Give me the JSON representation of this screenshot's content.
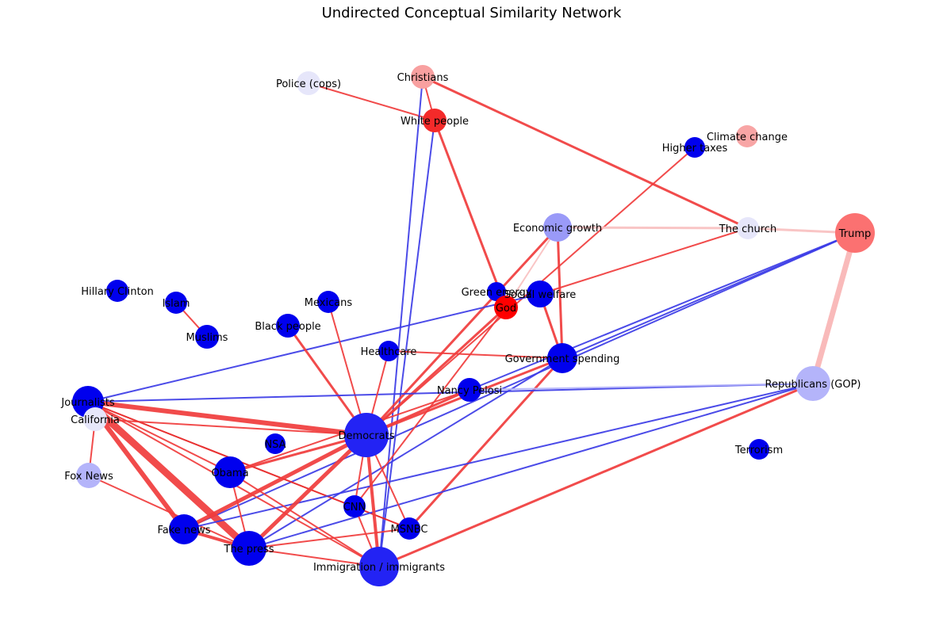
{
  "title": "Undirected Conceptual Similarity Network",
  "nodes": [
    {
      "id": "christians",
      "label": "Christians",
      "color": "#f8a0a0",
      "size": 15
    },
    {
      "id": "police",
      "label": "Police (cops)",
      "color": "#e6e6fa",
      "size": 15
    },
    {
      "id": "white_people",
      "label": "White people",
      "color": "#f42a2a",
      "size": 15
    },
    {
      "id": "climate_change",
      "label": "Climate change",
      "color": "#f8a5a5",
      "size": 14
    },
    {
      "id": "higher_taxes",
      "label": "Higher taxes",
      "color": "#0000ee",
      "size": 13
    },
    {
      "id": "economic_growth",
      "label": "Economic growth",
      "color": "#9a9af8",
      "size": 18
    },
    {
      "id": "the_church",
      "label": "The church",
      "color": "#e6e6fa",
      "size": 14
    },
    {
      "id": "trump",
      "label": "Trump",
      "color": "#fb7171",
      "size": 25
    },
    {
      "id": "green_energy",
      "label": "Green energy",
      "color": "#0000ee",
      "size": 12
    },
    {
      "id": "social_welfare",
      "label": "Social welfare",
      "color": "#0000ee",
      "size": 17
    },
    {
      "id": "god",
      "label": "God",
      "color": "#ff0000",
      "size": 15
    },
    {
      "id": "hillary_clinton",
      "label": "Hillary Clinton",
      "color": "#0000ee",
      "size": 14
    },
    {
      "id": "islam",
      "label": "Islam",
      "color": "#0000ee",
      "size": 14
    },
    {
      "id": "mexicans",
      "label": "Mexicans",
      "color": "#0000ee",
      "size": 14
    },
    {
      "id": "black_people",
      "label": "Black people",
      "color": "#0000ee",
      "size": 15
    },
    {
      "id": "muslims",
      "label": "Muslims",
      "color": "#0000ee",
      "size": 15
    },
    {
      "id": "healthcare",
      "label": "Healthcare",
      "color": "#0000ee",
      "size": 13
    },
    {
      "id": "government_spending",
      "label": "Government spending",
      "color": "#0000ee",
      "size": 19
    },
    {
      "id": "nancy_pelosi",
      "label": "Nancy Pelosi",
      "color": "#0000ee",
      "size": 15
    },
    {
      "id": "republicans",
      "label": "Republicans (GOP)",
      "color": "#b4b4fa",
      "size": 22
    },
    {
      "id": "journalists",
      "label": "Journalists",
      "color": "#0000ee",
      "size": 20
    },
    {
      "id": "california",
      "label": "California",
      "color": "#e6e6fa",
      "size": 15
    },
    {
      "id": "democrats",
      "label": "Democrats",
      "color": "#2323f4",
      "size": 28
    },
    {
      "id": "nsa",
      "label": "NSA",
      "color": "#0000ee",
      "size": 13
    },
    {
      "id": "terrorism",
      "label": "Terrorism",
      "color": "#0000ee",
      "size": 13
    },
    {
      "id": "fox_news",
      "label": "Fox News",
      "color": "#b4b4fa",
      "size": 16
    },
    {
      "id": "obama",
      "label": "Obama",
      "color": "#0000ee",
      "size": 20
    },
    {
      "id": "cnn",
      "label": "CNN",
      "color": "#0000ee",
      "size": 14
    },
    {
      "id": "msnbc",
      "label": "MSNBC",
      "color": "#0000ee",
      "size": 14
    },
    {
      "id": "fake_news",
      "label": "Fake news",
      "color": "#0000ee",
      "size": 19
    },
    {
      "id": "the_press",
      "label": "The press",
      "color": "#0000ee",
      "size": 22
    },
    {
      "id": "immigration",
      "label": "Immigration / immigrants",
      "color": "#2323f4",
      "size": 25
    }
  ],
  "edges": [
    {
      "a": "police",
      "b": "white_people",
      "color": "#f03c3c",
      "width": 2
    },
    {
      "a": "christians",
      "b": "white_people",
      "color": "#f03c3c",
      "width": 2
    },
    {
      "a": "christians",
      "b": "the_church",
      "color": "#f03c3c",
      "width": 3
    },
    {
      "a": "christians",
      "b": "immigration",
      "color": "#3c3ce6",
      "width": 2
    },
    {
      "a": "white_people",
      "b": "immigration",
      "color": "#3c3ce6",
      "width": 2
    },
    {
      "a": "white_people",
      "b": "god",
      "color": "#f03c3c",
      "width": 3
    },
    {
      "a": "higher_taxes",
      "b": "democrats",
      "color": "#f03c3c",
      "width": 2
    },
    {
      "a": "economic_growth",
      "b": "the_church",
      "color": "#f8c0c0",
      "width": 3
    },
    {
      "a": "the_church",
      "b": "trump",
      "color": "#f8c0c0",
      "width": 3
    },
    {
      "a": "economic_growth",
      "b": "god",
      "color": "#f8c0c0",
      "width": 2
    },
    {
      "a": "economic_growth",
      "b": "government_spending",
      "color": "#f03c3c",
      "width": 3
    },
    {
      "a": "economic_growth",
      "b": "democrats",
      "color": "#f03c3c",
      "width": 3
    },
    {
      "a": "the_church",
      "b": "social_welfare",
      "color": "#f03c3c",
      "width": 2
    },
    {
      "a": "trump",
      "b": "republicans",
      "color": "#f8b4b4",
      "width": 7
    },
    {
      "a": "trump",
      "b": "government_spending",
      "color": "#3c3ce6",
      "width": 2
    },
    {
      "a": "trump",
      "b": "nancy_pelosi",
      "color": "#3c3ce6",
      "width": 2
    },
    {
      "a": "trump",
      "b": "fake_news",
      "color": "#3c3ce6",
      "width": 2
    },
    {
      "a": "social_welfare",
      "b": "government_spending",
      "color": "#f03c3c",
      "width": 3
    },
    {
      "a": "social_welfare",
      "b": "journalists",
      "color": "#3c3ce6",
      "width": 2
    },
    {
      "a": "islam",
      "b": "muslims",
      "color": "#f03c3c",
      "width": 2
    },
    {
      "a": "mexicans",
      "b": "democrats",
      "color": "#f03c3c",
      "width": 2
    },
    {
      "a": "black_people",
      "b": "democrats",
      "color": "#f03c3c",
      "width": 3
    },
    {
      "a": "healthcare",
      "b": "government_spending",
      "color": "#f03c3c",
      "width": 2
    },
    {
      "a": "government_spending",
      "b": "democrats",
      "color": "#f03c3c",
      "width": 3
    },
    {
      "a": "government_spending",
      "b": "msnbc",
      "color": "#f03c3c",
      "width": 3
    },
    {
      "a": "government_spending",
      "b": "the_press",
      "color": "#3c3ce6",
      "width": 2
    },
    {
      "a": "god",
      "b": "democrats",
      "color": "#f03c3c",
      "width": 3
    },
    {
      "a": "god",
      "b": "cnn",
      "color": "#f03c3c",
      "width": 2
    },
    {
      "a": "journalists",
      "b": "republicans",
      "color": "#3c3ce6",
      "width": 2
    },
    {
      "a": "journalists",
      "b": "democrats",
      "color": "#f03c3c",
      "width": 6
    },
    {
      "a": "journalists",
      "b": "the_press",
      "color": "#f03c3c",
      "width": 9
    },
    {
      "a": "journalists",
      "b": "fake_news",
      "color": "#f03c3c",
      "width": 6
    },
    {
      "a": "journalists",
      "b": "obama",
      "color": "#f03c3c",
      "width": 2
    },
    {
      "a": "journalists",
      "b": "msnbc",
      "color": "#e61e1e",
      "width": 2
    },
    {
      "a": "journalists",
      "b": "immigration",
      "color": "#f03c3c",
      "width": 2
    },
    {
      "a": "california",
      "b": "fox_news",
      "color": "#f03c3c",
      "width": 2
    },
    {
      "a": "california",
      "b": "democrats",
      "color": "#f03c3c",
      "width": 2
    },
    {
      "a": "fox_news",
      "b": "the_press",
      "color": "#f03c3c",
      "width": 2
    },
    {
      "a": "nancy_pelosi",
      "b": "democrats",
      "color": "#f03c3c",
      "width": 3
    },
    {
      "a": "nancy_pelosi",
      "b": "obama",
      "color": "#f03c3c",
      "width": 2
    },
    {
      "a": "republicans",
      "b": "nancy_pelosi",
      "color": "#b4b4fa",
      "width": 2
    },
    {
      "a": "republicans",
      "b": "the_press",
      "color": "#3c3ce6",
      "width": 2
    },
    {
      "a": "republicans",
      "b": "immigration",
      "color": "#f03c3c",
      "width": 3
    },
    {
      "a": "republicans",
      "b": "fake_news",
      "color": "#3c3ce6",
      "width": 2
    },
    {
      "a": "democrats",
      "b": "obama",
      "color": "#f03c3c",
      "width": 3
    },
    {
      "a": "democrats",
      "b": "fake_news",
      "color": "#f03c3c",
      "width": 5
    },
    {
      "a": "democrats",
      "b": "the_press",
      "color": "#f03c3c",
      "width": 5
    },
    {
      "a": "democrats",
      "b": "immigration",
      "color": "#f03c3c",
      "width": 4
    },
    {
      "a": "democrats",
      "b": "msnbc",
      "color": "#f03c3c",
      "width": 2
    },
    {
      "a": "democrats",
      "b": "cnn",
      "color": "#f03c3c",
      "width": 2
    },
    {
      "a": "obama",
      "b": "the_press",
      "color": "#f03c3c",
      "width": 2
    },
    {
      "a": "obama",
      "b": "immigration",
      "color": "#f03c3c",
      "width": 2
    },
    {
      "a": "fake_news",
      "b": "the_press",
      "color": "#f03c3c",
      "width": 4
    },
    {
      "a": "the_press",
      "b": "immigration",
      "color": "#f03c3c",
      "width": 2
    },
    {
      "a": "the_press",
      "b": "msnbc",
      "color": "#f03c3c",
      "width": 2
    },
    {
      "a": "cnn",
      "b": "immigration",
      "color": "#f03c3c",
      "width": 2
    },
    {
      "a": "healthcare",
      "b": "democrats",
      "color": "#f03c3c",
      "width": 2
    }
  ]
}
